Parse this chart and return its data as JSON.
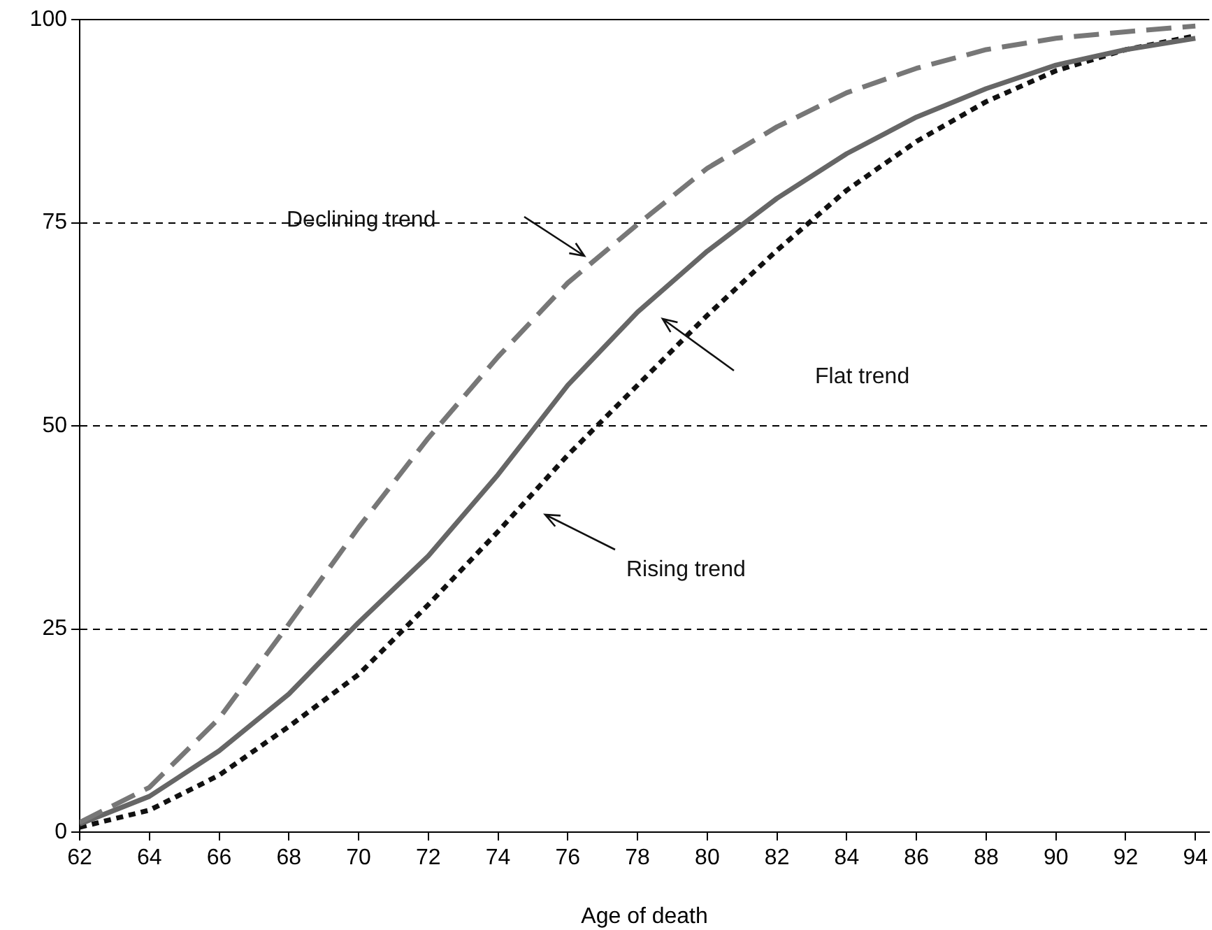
{
  "chart_data": {
    "type": "line",
    "xlabel": "Age of death",
    "x": [
      62,
      64,
      66,
      68,
      70,
      72,
      74,
      76,
      78,
      80,
      82,
      84,
      86,
      88,
      90,
      92,
      94
    ],
    "series": [
      {
        "color": "#777777",
        "line_style": "dashed",
        "values": [
          1.2,
          5.5,
          14,
          25.6,
          37.5,
          48.5,
          58.5,
          67.6,
          74.8,
          81.7,
          86.8,
          91,
          94,
          96.3,
          97.7,
          98.5,
          99.2
        ]
      },
      {
        "color": "#666666",
        "line_style": "solid",
        "values": [
          1,
          4.4,
          10,
          17,
          25.8,
          34,
          44,
          55,
          64,
          71.5,
          78,
          83.5,
          88,
          91.5,
          94.4,
          96.3,
          97.7
        ]
      },
      {
        "color": "#111111",
        "line_style": "dotted",
        "values": [
          0.6,
          2.7,
          7,
          13,
          19.4,
          28,
          37,
          46.4,
          55,
          63.6,
          71.6,
          79,
          85,
          89.9,
          93.7,
          96.3,
          98
        ]
      }
    ],
    "annotations": [
      "Declining trend",
      "Flat trend",
      "Rising trend"
    ],
    "xlim": [
      62,
      94.4
    ],
    "xticks": [
      62,
      64,
      66,
      68,
      70,
      72,
      74,
      76,
      78,
      80,
      82,
      84,
      86,
      88,
      90,
      92,
      94
    ],
    "ylim": [
      0,
      100
    ],
    "yticks": [
      0,
      25,
      50,
      75,
      100
    ],
    "grid": "y",
    "marker": "none"
  }
}
